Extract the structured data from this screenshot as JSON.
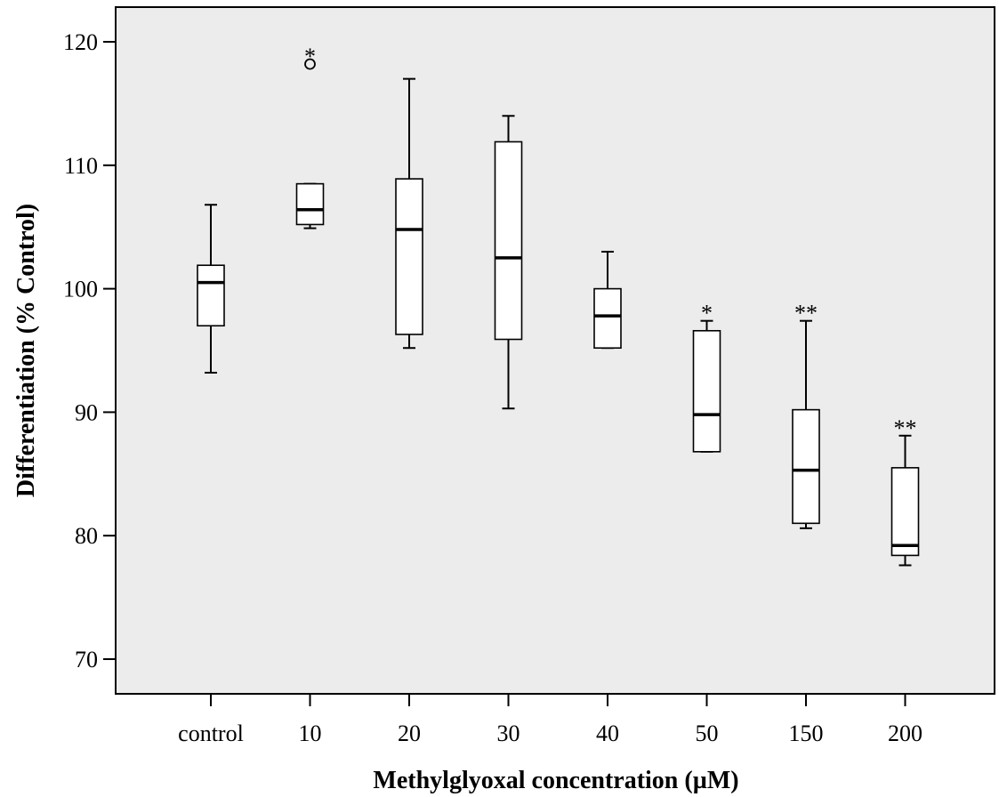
{
  "chart_data": {
    "type": "box",
    "title": "",
    "xlabel": "Methylglyoxal concentration (µM)",
    "ylabel": "Differentiation (% Control)",
    "ylim": [
      66,
      123
    ],
    "yticks": [
      70,
      80,
      90,
      100,
      110,
      120
    ],
    "grid": false,
    "background": "#ececec",
    "categories": [
      "control",
      "10",
      "20",
      "30",
      "40",
      "50",
      "150",
      "200"
    ],
    "boxes": [
      {
        "category": "control",
        "whisker_low": 93.2,
        "q1": 97.0,
        "median": 100.5,
        "q3": 101.9,
        "whisker_high": 106.8,
        "outliers": [],
        "significance": ""
      },
      {
        "category": "10",
        "whisker_low": 104.9,
        "q1": 105.2,
        "median": 106.4,
        "q3": 108.5,
        "whisker_high": 108.5,
        "outliers": [
          118.2
        ],
        "significance": "*"
      },
      {
        "category": "20",
        "whisker_low": 95.2,
        "q1": 96.3,
        "median": 104.8,
        "q3": 108.9,
        "whisker_high": 117.0,
        "outliers": [],
        "significance": ""
      },
      {
        "category": "30",
        "whisker_low": 90.3,
        "q1": 95.9,
        "median": 102.5,
        "q3": 111.9,
        "whisker_high": 114.0,
        "outliers": [],
        "significance": ""
      },
      {
        "category": "40",
        "whisker_low": 95.2,
        "q1": 95.2,
        "median": 97.8,
        "q3": 100.0,
        "whisker_high": 103.0,
        "outliers": [],
        "significance": ""
      },
      {
        "category": "50",
        "whisker_low": 86.8,
        "q1": 86.8,
        "median": 89.8,
        "q3": 96.6,
        "whisker_high": 97.4,
        "outliers": [],
        "significance": "*"
      },
      {
        "category": "150",
        "whisker_low": 80.6,
        "q1": 81.0,
        "median": 85.3,
        "q3": 90.2,
        "whisker_high": 97.4,
        "outliers": [],
        "significance": "**"
      },
      {
        "category": "200",
        "whisker_low": 77.6,
        "q1": 78.4,
        "median": 79.2,
        "q3": 85.5,
        "whisker_high": 88.1,
        "outliers": [],
        "significance": "**"
      }
    ]
  }
}
